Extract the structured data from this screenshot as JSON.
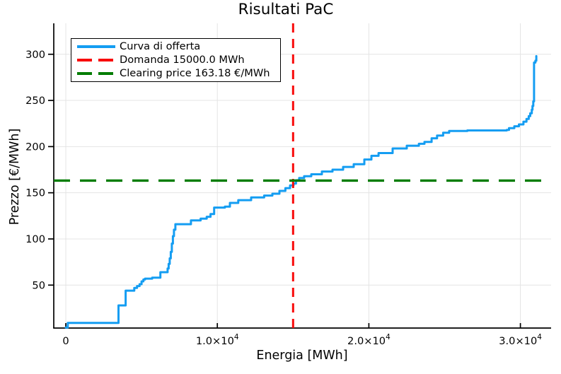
{
  "chart_data": {
    "type": "line",
    "subtype": "step-supply-curve",
    "title": "Risultati PaC",
    "xlabel": "Energia [MWh]",
    "ylabel": "Prezzo [€/MWh]",
    "xlim": [
      -794,
      32026
    ],
    "ylim": [
      3.5,
      333.5
    ],
    "grid": true,
    "x_ticks": [
      {
        "value": 0,
        "label": "0"
      },
      {
        "value": 10000,
        "label": "1.0×10^4"
      },
      {
        "value": 20000,
        "label": "2.0×10^4"
      },
      {
        "value": 30000,
        "label": "3.0×10^4"
      }
    ],
    "y_ticks": [
      {
        "value": 50,
        "label": "50"
      },
      {
        "value": 100,
        "label": "100"
      },
      {
        "value": 150,
        "label": "150"
      },
      {
        "value": 200,
        "label": "200"
      },
      {
        "value": 250,
        "label": "250"
      },
      {
        "value": 300,
        "label": "300"
      }
    ],
    "legend": {
      "position": "top-left",
      "entries": [
        {
          "label": "Curva di offerta",
          "color": "#149df2",
          "dashed": false
        },
        {
          "label": "Domanda 15000.0 MWh",
          "color": "#f80b0b",
          "dashed": true
        },
        {
          "label": "Clearing price 163.18 €/MWh",
          "color": "#007c00",
          "dashed": true
        }
      ]
    },
    "demand_line": {
      "x": 15000,
      "color": "#f80b0b",
      "style": "dashed",
      "orientation": "vertical"
    },
    "clearing_line": {
      "y": 163.18,
      "color": "#007c00",
      "style": "dashed",
      "orientation": "horizontal"
    },
    "series": [
      {
        "name": "Curva di offerta",
        "color": "#149df2",
        "interpolation": "step-after",
        "points": [
          [
            0,
            4
          ],
          [
            130,
            9
          ],
          [
            3480,
            9
          ],
          [
            3480,
            28
          ],
          [
            3950,
            28
          ],
          [
            3950,
            44
          ],
          [
            4520,
            44
          ],
          [
            4520,
            47
          ],
          [
            4700,
            49
          ],
          [
            4870,
            51
          ],
          [
            5000,
            54
          ],
          [
            5120,
            56
          ],
          [
            5230,
            57
          ],
          [
            5700,
            58
          ],
          [
            6240,
            58
          ],
          [
            6240,
            64
          ],
          [
            6650,
            64
          ],
          [
            6720,
            68
          ],
          [
            6790,
            73
          ],
          [
            6860,
            79
          ],
          [
            6930,
            86
          ],
          [
            7000,
            95
          ],
          [
            7070,
            103
          ],
          [
            7140,
            110
          ],
          [
            7230,
            116
          ],
          [
            8260,
            116
          ],
          [
            8260,
            120
          ],
          [
            8900,
            122
          ],
          [
            9300,
            124
          ],
          [
            9550,
            127
          ],
          [
            9790,
            128
          ],
          [
            9790,
            134
          ],
          [
            10500,
            135
          ],
          [
            10830,
            139
          ],
          [
            11380,
            142
          ],
          [
            12230,
            145
          ],
          [
            13090,
            147
          ],
          [
            13630,
            149
          ],
          [
            14100,
            152
          ],
          [
            14490,
            155
          ],
          [
            14800,
            158
          ],
          [
            15030,
            160
          ],
          [
            15190,
            163.5
          ],
          [
            15400,
            166
          ],
          [
            15730,
            168
          ],
          [
            16200,
            170
          ],
          [
            16900,
            173
          ],
          [
            17600,
            175
          ],
          [
            18300,
            178
          ],
          [
            19000,
            181
          ],
          [
            19700,
            186
          ],
          [
            20170,
            190
          ],
          [
            20640,
            193
          ],
          [
            21570,
            198
          ],
          [
            22500,
            201
          ],
          [
            23300,
            203
          ],
          [
            23670,
            205
          ],
          [
            24140,
            209
          ],
          [
            24500,
            212
          ],
          [
            24900,
            215
          ],
          [
            25300,
            217
          ],
          [
            26500,
            217.5
          ],
          [
            29100,
            218
          ],
          [
            29250,
            220
          ],
          [
            29600,
            222
          ],
          [
            29900,
            224
          ],
          [
            30200,
            227
          ],
          [
            30400,
            230
          ],
          [
            30550,
            233
          ],
          [
            30650,
            236
          ],
          [
            30750,
            240
          ],
          [
            30800,
            244
          ],
          [
            30850,
            249
          ],
          [
            30900,
            291
          ],
          [
            30990,
            293
          ],
          [
            31050,
            298
          ]
        ]
      }
    ],
    "colors": {
      "grid": "#e4e4e4",
      "axis": "#000000",
      "background": "#ffffff"
    }
  }
}
